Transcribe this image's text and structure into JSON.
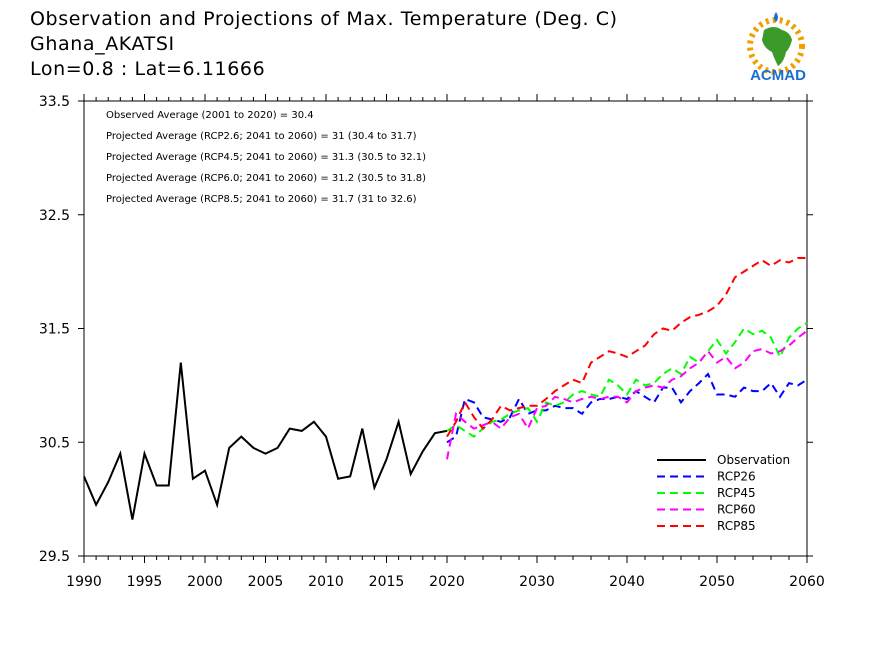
{
  "header": {
    "title": "Observation and Projections of Max. Temperature (Deg. C)",
    "location": "Ghana_AKATSI",
    "coords": "Lon=0.8 : Lat=6.11666"
  },
  "logo": {
    "text": "ACMAD"
  },
  "chart_data": {
    "type": "line",
    "title": "Observation and Projections of Max. Temperature (Deg. C)",
    "ylim": [
      29.5,
      33.5
    ],
    "yticks": [
      "29.5",
      "30.5",
      "31.5",
      "32.5",
      "33.5"
    ],
    "yticks_values": [
      29.5,
      30.5,
      31.5,
      32.5,
      33.5
    ],
    "xticks": [
      "1990",
      "1995",
      "2000",
      "2005",
      "2010",
      "2015",
      "2020",
      "2030",
      "2040",
      "2050",
      "2060"
    ],
    "xticks_values": [
      1990,
      1995,
      2000,
      2005,
      2010,
      2015,
      2020,
      2030,
      2040,
      2050,
      2060
    ],
    "grid": false,
    "legend_position": "bottom-right",
    "annotations": [
      "Observed Average (2001 to 2020) = 30.4",
      "Projected Average (RCP2.6; 2041 to 2060) = 31 (30.4 to 31.7)",
      "Projected Average (RCP4.5; 2041 to 2060) = 31.3 (30.5 to 32.1)",
      "Projected Average (RCP6.0; 2041 to 2060) = 31.2 (30.5 to 31.8)",
      "Projected Average (RCP8.5; 2041 to 2060) = 31.7 (31 to 32.6)"
    ],
    "series": [
      {
        "name": "Observation",
        "color": "#000000",
        "dash": false,
        "x": [
          1990,
          1991,
          1992,
          1993,
          1994,
          1995,
          1996,
          1997,
          1998,
          1999,
          2000,
          2001,
          2002,
          2003,
          2004,
          2005,
          2006,
          2007,
          2008,
          2009,
          2010,
          2011,
          2012,
          2013,
          2014,
          2015,
          2016,
          2017,
          2018,
          2019,
          2020
        ],
        "y": [
          30.2,
          29.95,
          30.15,
          30.4,
          29.82,
          30.4,
          30.12,
          30.12,
          31.2,
          30.18,
          30.25,
          29.95,
          30.45,
          30.55,
          30.45,
          30.4,
          30.45,
          30.62,
          30.6,
          30.68,
          30.55,
          30.18,
          30.2,
          30.62,
          30.1,
          30.35,
          30.68,
          30.22,
          30.42,
          30.58,
          30.6
        ]
      },
      {
        "name": "RCP26",
        "color": "#0000ff",
        "dash": true,
        "x": [
          2020,
          2021,
          2022,
          2023,
          2024,
          2025,
          2026,
          2027,
          2028,
          2029,
          2030,
          2031,
          2032,
          2033,
          2034,
          2035,
          2036,
          2037,
          2038,
          2039,
          2040,
          2041,
          2042,
          2043,
          2044,
          2045,
          2046,
          2047,
          2048,
          2049,
          2050,
          2051,
          2052,
          2053,
          2054,
          2055,
          2056,
          2057,
          2058,
          2059,
          2060
        ],
        "y": [
          30.5,
          30.55,
          30.88,
          30.85,
          30.72,
          30.7,
          30.68,
          30.72,
          30.88,
          30.75,
          30.78,
          30.78,
          30.82,
          30.8,
          30.8,
          30.75,
          30.85,
          30.88,
          30.88,
          30.9,
          30.88,
          30.95,
          30.9,
          30.85,
          30.98,
          30.98,
          30.85,
          30.95,
          31.02,
          31.1,
          30.92,
          30.92,
          30.9,
          30.98,
          30.95,
          30.95,
          31.02,
          30.9,
          31.02,
          31.0,
          31.05
        ]
      },
      {
        "name": "RCP45",
        "color": "#00ff00",
        "dash": true,
        "x": [
          2020,
          2021,
          2022,
          2023,
          2024,
          2025,
          2026,
          2027,
          2028,
          2029,
          2030,
          2031,
          2032,
          2033,
          2034,
          2035,
          2036,
          2037,
          2038,
          2039,
          2040,
          2041,
          2042,
          2043,
          2044,
          2045,
          2046,
          2047,
          2048,
          2049,
          2050,
          2051,
          2052,
          2053,
          2054,
          2055,
          2056,
          2057,
          2058,
          2059,
          2060
        ],
        "y": [
          30.6,
          30.65,
          30.6,
          30.55,
          30.62,
          30.68,
          30.7,
          30.75,
          30.78,
          30.8,
          30.68,
          30.85,
          30.82,
          30.85,
          30.92,
          30.95,
          30.92,
          30.9,
          31.05,
          31.0,
          30.92,
          31.05,
          31.0,
          31.02,
          31.1,
          31.15,
          31.1,
          31.25,
          31.2,
          31.3,
          31.4,
          31.28,
          31.38,
          31.5,
          31.45,
          31.48,
          31.42,
          31.25,
          31.42,
          31.5,
          31.55
        ]
      },
      {
        "name": "RCP60",
        "color": "#ff00ff",
        "dash": true,
        "x": [
          2020,
          2021,
          2022,
          2023,
          2024,
          2025,
          2026,
          2027,
          2028,
          2029,
          2030,
          2031,
          2032,
          2033,
          2034,
          2035,
          2036,
          2037,
          2038,
          2039,
          2040,
          2041,
          2042,
          2043,
          2044,
          2045,
          2046,
          2047,
          2048,
          2049,
          2050,
          2051,
          2052,
          2053,
          2054,
          2055,
          2056,
          2057,
          2058,
          2059,
          2060
        ],
        "y": [
          30.35,
          30.75,
          30.68,
          30.62,
          30.65,
          30.68,
          30.62,
          30.72,
          30.75,
          30.62,
          30.8,
          30.82,
          30.9,
          30.88,
          30.85,
          30.88,
          30.9,
          30.88,
          30.9,
          30.9,
          30.85,
          30.95,
          30.98,
          31.0,
          30.98,
          31.05,
          31.08,
          31.15,
          31.2,
          31.3,
          31.2,
          31.25,
          31.15,
          31.2,
          31.3,
          31.32,
          31.28,
          31.3,
          31.35,
          31.42,
          31.48
        ]
      },
      {
        "name": "RCP85",
        "color": "#ff0000",
        "dash": true,
        "x": [
          2020,
          2021,
          2022,
          2023,
          2024,
          2025,
          2026,
          2027,
          2028,
          2029,
          2030,
          2031,
          2032,
          2033,
          2034,
          2035,
          2036,
          2037,
          2038,
          2039,
          2040,
          2041,
          2042,
          2043,
          2044,
          2045,
          2046,
          2047,
          2048,
          2049,
          2050,
          2051,
          2052,
          2053,
          2054,
          2055,
          2056,
          2057,
          2058,
          2059,
          2060
        ],
        "y": [
          30.55,
          30.68,
          30.85,
          30.72,
          30.62,
          30.7,
          30.82,
          30.78,
          30.8,
          30.82,
          30.82,
          30.88,
          30.95,
          31.0,
          31.05,
          31.02,
          31.2,
          31.25,
          31.3,
          31.28,
          31.25,
          31.3,
          31.35,
          31.45,
          31.5,
          31.48,
          31.55,
          31.6,
          31.62,
          31.65,
          31.7,
          31.8,
          31.95,
          32.0,
          32.05,
          32.1,
          32.05,
          32.1,
          32.08,
          32.12,
          32.12
        ]
      }
    ]
  }
}
